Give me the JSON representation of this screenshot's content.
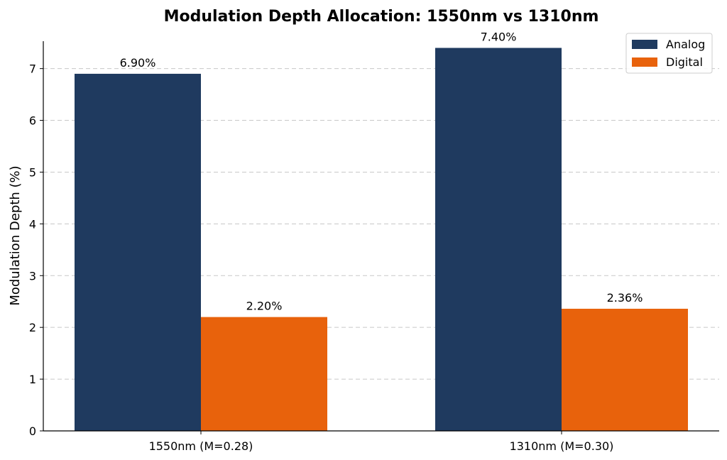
{
  "chart_data": {
    "type": "bar",
    "title": "Modulation Depth Allocation: 1550nm vs 1310nm",
    "xlabel": "",
    "ylabel": "Modulation Depth (%)",
    "categories": [
      "1550nm (M=0.28)",
      "1310nm (M=0.30)"
    ],
    "series": [
      {
        "name": "Analog",
        "values": [
          6.9,
          7.4
        ],
        "labels": [
          "6.90%",
          "7.40%"
        ],
        "color": "#1f3a5f"
      },
      {
        "name": "Digital",
        "values": [
          2.2,
          2.36
        ],
        "labels": [
          "2.20%",
          "2.36%"
        ],
        "color": "#e8620c"
      }
    ],
    "ylim": [
      0,
      7.53
    ],
    "yticks": [
      0,
      1,
      2,
      3,
      4,
      5,
      6,
      7
    ],
    "grid": "y-dashed",
    "legend": "top-right"
  }
}
